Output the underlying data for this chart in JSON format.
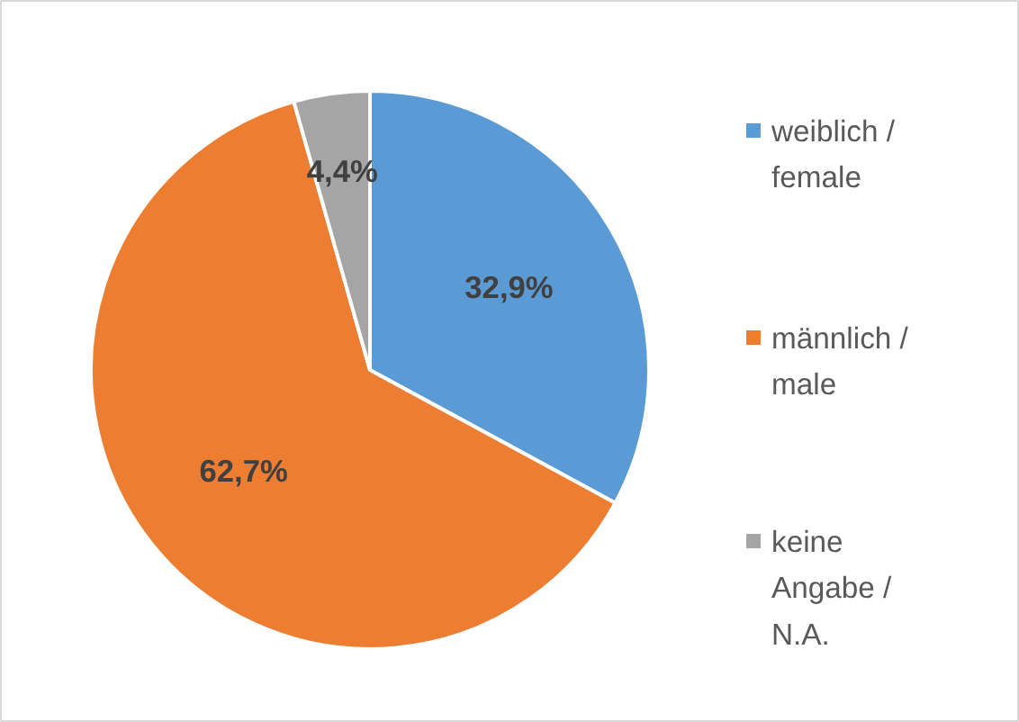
{
  "chart_data": {
    "type": "pie",
    "categories": [
      "weiblich / female",
      "männlich / male",
      "keine Angabe / N.A."
    ],
    "values": [
      32.9,
      62.7,
      4.4
    ],
    "colors": [
      "#5b9bd5",
      "#ed7d31",
      "#a5a5a5"
    ],
    "value_labels": [
      "32,9%",
      "62,7%",
      "4,4%"
    ],
    "legend": "right"
  }
}
